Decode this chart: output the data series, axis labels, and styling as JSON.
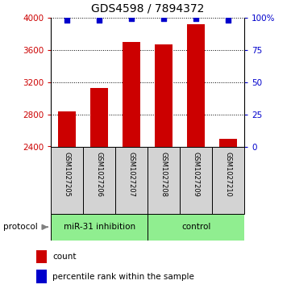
{
  "title": "GDS4598 / 7894372",
  "samples": [
    "GSM1027205",
    "GSM1027206",
    "GSM1027207",
    "GSM1027208",
    "GSM1027209",
    "GSM1027210"
  ],
  "counts": [
    2840,
    3130,
    3700,
    3670,
    3920,
    2500
  ],
  "percentile_ranks": [
    98,
    98,
    99,
    99,
    99,
    98
  ],
  "ylim": [
    2400,
    4000
  ],
  "yticks": [
    2400,
    2800,
    3200,
    3600,
    4000
  ],
  "right_yticks": [
    0,
    25,
    50,
    75,
    100
  ],
  "right_ytick_labels": [
    "0",
    "25",
    "50",
    "75",
    "100%"
  ],
  "bar_color": "#cc0000",
  "dot_color": "#0000cc",
  "group1_label": "miR-31 inhibition",
  "group2_label": "control",
  "group1_indices": [
    0,
    1,
    2
  ],
  "group2_indices": [
    3,
    4,
    5
  ],
  "group_color": "#90ee90",
  "sample_bg_color": "#d3d3d3",
  "protocol_label": "protocol",
  "legend_count_label": "count",
  "legend_pct_label": "percentile rank within the sample",
  "background_color": "#ffffff",
  "title_fontsize": 10,
  "tick_fontsize": 7.5,
  "bar_width": 0.55
}
